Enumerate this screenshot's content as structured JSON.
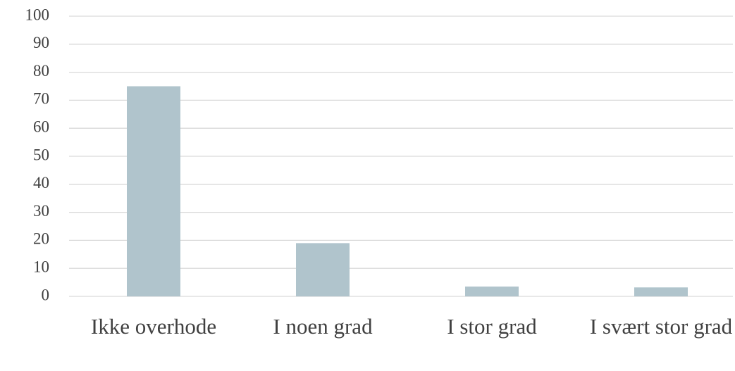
{
  "chart_data": {
    "type": "bar",
    "categories": [
      "Ikke overhode",
      "I noen grad",
      "I stor grad",
      "I svært stor grad"
    ],
    "values": [
      75,
      19,
      3.5,
      3.2
    ],
    "color": "#b0c4cc",
    "ylim": [
      0,
      100
    ],
    "yticks": [
      0,
      10,
      20,
      30,
      40,
      50,
      60,
      70,
      80,
      90,
      100
    ],
    "grid": true
  }
}
